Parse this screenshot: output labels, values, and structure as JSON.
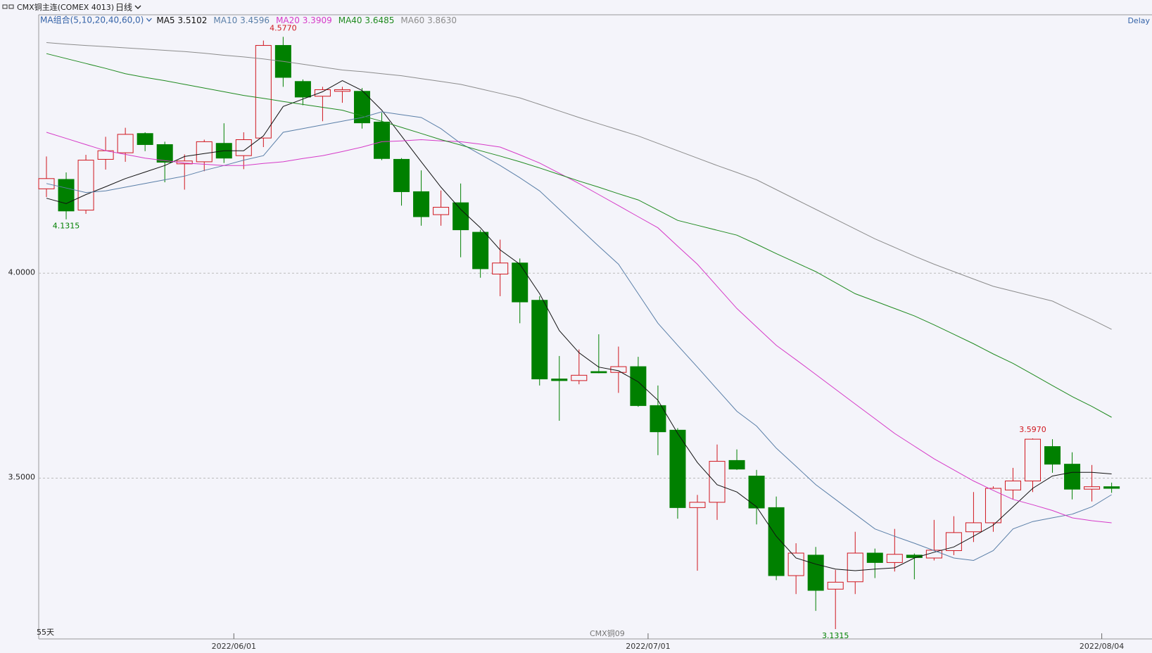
{
  "header": {
    "title": "CMX铜主连(COMEX 4013)",
    "period": "日线",
    "delay": "Delay"
  },
  "chart_data": {
    "type": "candlestick",
    "ma_label": "MA组合(5,10,20,40,60,0)",
    "days_label": "55天",
    "contract_marker": "CMX铜09",
    "categories": [
      null,
      null,
      null,
      null,
      null,
      null,
      null,
      null,
      null,
      null,
      "2022/06/01",
      null,
      null,
      null,
      null,
      null,
      null,
      null,
      null,
      null,
      null,
      null,
      null,
      null,
      null,
      null,
      null,
      null,
      null,
      null,
      null,
      "2022/07/01",
      null,
      null,
      null,
      null,
      null,
      null,
      null,
      null,
      null,
      null,
      null,
      null,
      null,
      null,
      null,
      null,
      null,
      null,
      null,
      null,
      null,
      null,
      "2022/08/04"
    ],
    "open": [
      4.206,
      4.229,
      4.154,
      4.278,
      4.294,
      4.341,
      4.314,
      4.267,
      4.272,
      4.317,
      4.287,
      4.33,
      4.556,
      4.468,
      4.432,
      4.444,
      4.444,
      4.369,
      4.278,
      4.199,
      4.143,
      4.172,
      4.1,
      3.998,
      4.025,
      3.934,
      3.742,
      3.738,
      3.76,
      3.758,
      3.772,
      3.677,
      3.617,
      3.428,
      3.441,
      3.543,
      3.505,
      3.428,
      3.262,
      3.312,
      3.229,
      3.247,
      3.317,
      3.294,
      3.312,
      3.305,
      3.323,
      3.369,
      3.391,
      3.471,
      3.493,
      3.577,
      3.534,
      3.473,
      3.479
    ],
    "high": [
      4.285,
      4.246,
      4.289,
      4.333,
      4.355,
      4.344,
      4.321,
      4.29,
      4.326,
      4.366,
      4.344,
      4.568,
      4.577,
      4.473,
      4.455,
      4.455,
      4.452,
      4.392,
      4.281,
      4.251,
      4.202,
      4.219,
      4.106,
      4.082,
      4.036,
      3.944,
      3.798,
      3.814,
      3.851,
      3.821,
      3.796,
      3.726,
      3.622,
      3.459,
      3.582,
      3.57,
      3.52,
      3.455,
      3.341,
      3.332,
      3.276,
      3.369,
      3.328,
      3.376,
      3.316,
      3.398,
      3.407,
      3.466,
      3.48,
      3.525,
      3.597,
      3.595,
      3.563,
      3.532,
      3.489
    ],
    "low": [
      4.186,
      4.1315,
      4.145,
      4.253,
      4.272,
      4.298,
      4.222,
      4.204,
      4.249,
      4.269,
      4.254,
      4.308,
      4.455,
      4.41,
      4.371,
      4.416,
      4.353,
      4.276,
      4.165,
      4.116,
      4.116,
      4.039,
      3.989,
      3.944,
      3.878,
      3.726,
      3.64,
      3.729,
      3.756,
      3.708,
      3.674,
      3.556,
      3.401,
      3.274,
      3.398,
      3.52,
      3.387,
      3.251,
      3.217,
      3.176,
      3.1315,
      3.217,
      3.256,
      3.272,
      3.253,
      3.299,
      3.312,
      3.344,
      3.369,
      3.448,
      3.466,
      3.513,
      3.448,
      3.443,
      3.464
    ],
    "close": [
      4.231,
      4.152,
      4.276,
      4.299,
      4.339,
      4.314,
      4.271,
      4.274,
      4.321,
      4.281,
      4.326,
      4.556,
      4.478,
      4.43,
      4.448,
      4.448,
      4.367,
      4.28,
      4.199,
      4.138,
      4.161,
      4.106,
      4.011,
      4.025,
      3.93,
      3.742,
      3.738,
      3.751,
      3.757,
      3.772,
      3.677,
      3.613,
      3.428,
      3.441,
      3.541,
      3.522,
      3.427,
      3.262,
      3.317,
      3.226,
      3.246,
      3.317,
      3.294,
      3.314,
      3.306,
      3.324,
      3.367,
      3.391,
      3.475,
      3.493,
      3.595,
      3.534,
      3.473,
      3.479,
      3.475
    ],
    "up_color": "#d0161e",
    "down_color": "#008000",
    "high_labels": [
      {
        "value": 4.577,
        "label": "4.5770"
      },
      {
        "value": 3.597,
        "label": "3.5970"
      }
    ],
    "low_labels": [
      {
        "value": 4.1315,
        "label": "4.1315"
      },
      {
        "value": 3.1315,
        "label": "3.1315"
      }
    ],
    "lines": [
      {
        "name": "MA5",
        "legend_value": "3.5102",
        "color": "#111111",
        "values": [
          4.183,
          4.17,
          4.192,
          4.211,
          4.231,
          4.247,
          4.263,
          4.285,
          4.292,
          4.299,
          4.299,
          4.335,
          4.407,
          4.425,
          4.443,
          4.47,
          4.446,
          4.398,
          4.335,
          4.272,
          4.21,
          4.156,
          4.111,
          4.057,
          4.022,
          3.95,
          3.86,
          3.806,
          3.771,
          3.762,
          3.735,
          3.69,
          3.609,
          3.538,
          3.484,
          3.466,
          3.43,
          3.358,
          3.305,
          3.29,
          3.278,
          3.274,
          3.278,
          3.281,
          3.305,
          3.319,
          3.332,
          3.358,
          3.385,
          3.43,
          3.475,
          3.505,
          3.514,
          3.514,
          3.5102
        ]
      },
      {
        "name": "MA10",
        "legend_value": "3.4596",
        "color": "#5a7fa8",
        "values": [
          4.219,
          4.208,
          4.197,
          4.201,
          4.21,
          4.219,
          4.228,
          4.237,
          4.251,
          4.263,
          4.276,
          4.287,
          4.344,
          4.353,
          4.362,
          4.371,
          4.38,
          4.394,
          4.387,
          4.38,
          4.353,
          4.317,
          4.29,
          4.263,
          4.233,
          4.201,
          4.156,
          4.111,
          4.066,
          4.022,
          3.95,
          3.878,
          3.824,
          3.771,
          3.717,
          3.663,
          3.627,
          3.573,
          3.529,
          3.484,
          3.448,
          3.412,
          3.376,
          3.358,
          3.341,
          3.323,
          3.305,
          3.299,
          3.323,
          3.376,
          3.394,
          3.403,
          3.412,
          3.43,
          3.4596
        ]
      },
      {
        "name": "MA20",
        "legend_value": "3.3909",
        "color": "#d63ac8",
        "values": [
          4.344,
          4.329,
          4.314,
          4.299,
          4.29,
          4.281,
          4.275,
          4.269,
          4.266,
          4.263,
          4.263,
          4.268,
          4.272,
          4.28,
          4.287,
          4.297,
          4.308,
          4.321,
          4.323,
          4.326,
          4.323,
          4.321,
          4.315,
          4.308,
          4.289,
          4.269,
          4.244,
          4.219,
          4.192,
          4.165,
          4.138,
          4.111,
          4.066,
          4.022,
          3.968,
          3.914,
          3.869,
          3.824,
          3.789,
          3.753,
          3.717,
          3.681,
          3.645,
          3.609,
          3.578,
          3.547,
          3.52,
          3.493,
          3.47,
          3.448,
          3.435,
          3.421,
          3.403,
          3.396,
          3.3909
        ]
      },
      {
        "name": "MA40",
        "legend_value": "3.6485",
        "color": "#1f8a1f",
        "values": [
          4.536,
          4.524,
          4.512,
          4.5,
          4.487,
          4.478,
          4.47,
          4.461,
          4.452,
          4.443,
          4.434,
          4.427,
          4.419,
          4.412,
          4.405,
          4.398,
          4.384,
          4.371,
          4.356,
          4.341,
          4.326,
          4.313,
          4.299,
          4.286,
          4.272,
          4.257,
          4.241,
          4.225,
          4.21,
          4.194,
          4.179,
          4.154,
          4.129,
          4.117,
          4.105,
          4.093,
          4.071,
          4.048,
          4.026,
          4.004,
          3.977,
          3.95,
          3.932,
          3.914,
          3.896,
          3.874,
          3.851,
          3.828,
          3.803,
          3.78,
          3.753,
          3.726,
          3.699,
          3.675,
          3.6485
        ]
      },
      {
        "name": "MA60",
        "legend_value": "3.8630",
        "color": "#8c8c8c",
        "values": [
          4.563,
          4.559,
          4.556,
          4.553,
          4.55,
          4.547,
          4.544,
          4.541,
          4.537,
          4.532,
          4.528,
          4.523,
          4.517,
          4.51,
          4.503,
          4.496,
          4.492,
          4.487,
          4.482,
          4.475,
          4.468,
          4.461,
          4.45,
          4.439,
          4.428,
          4.412,
          4.396,
          4.38,
          4.365,
          4.35,
          4.335,
          4.317,
          4.299,
          4.281,
          4.263,
          4.246,
          4.228,
          4.204,
          4.18,
          4.156,
          4.132,
          4.108,
          4.084,
          4.063,
          4.042,
          4.022,
          4.004,
          3.986,
          3.968,
          3.956,
          3.944,
          3.932,
          3.909,
          3.887,
          3.863
        ]
      }
    ],
    "ylim": [
      3.1075,
      4.6308
    ],
    "yticks": [
      {
        "value": 3.5,
        "label": "3.5000"
      },
      {
        "value": 4.0,
        "label": "4.0000"
      }
    ],
    "grid": true
  }
}
